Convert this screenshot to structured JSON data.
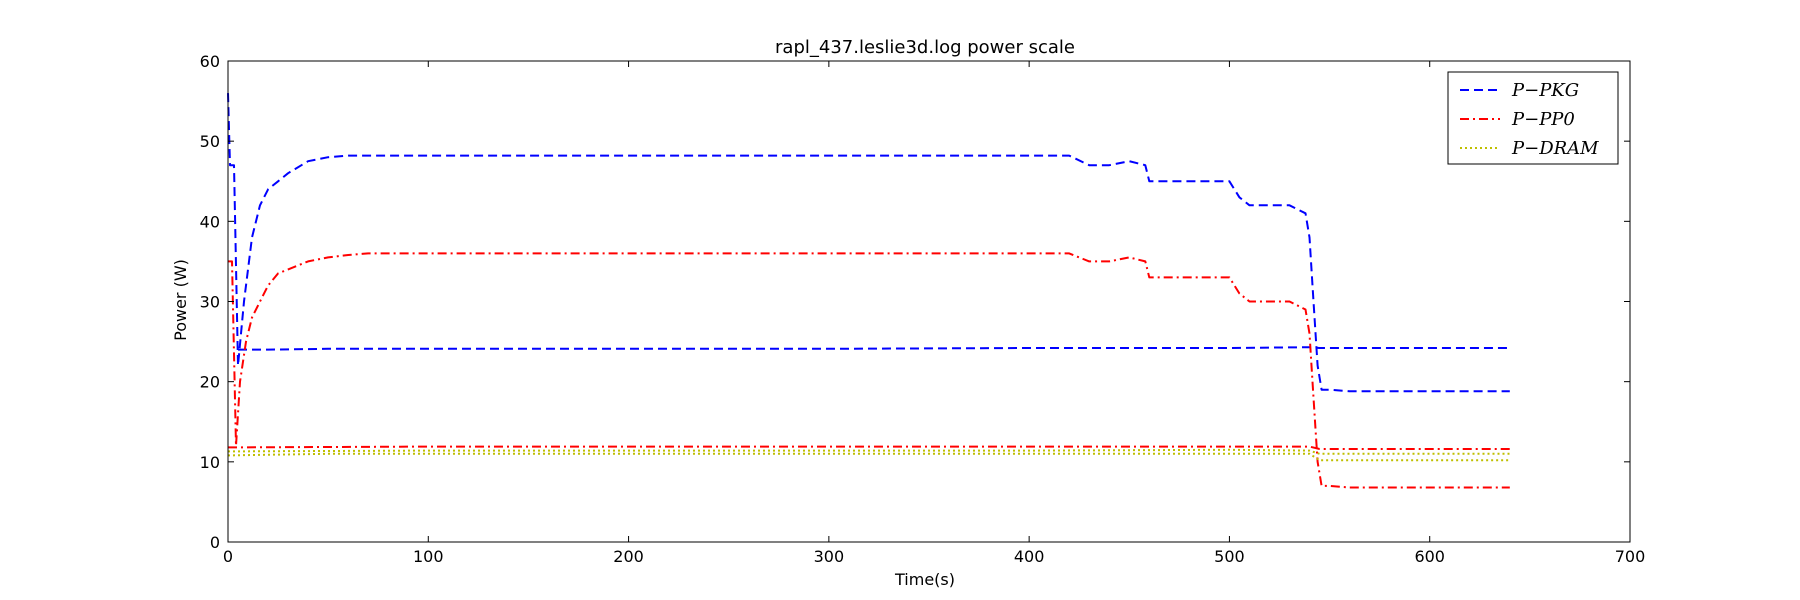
{
  "chart_data": {
    "type": "line",
    "title": "rapl_437.leslie3d.log power scale",
    "xlabel": "Time(s)",
    "ylabel": "Power (W)",
    "xlim": [
      0,
      700
    ],
    "ylim": [
      0,
      60
    ],
    "xticks": [
      0,
      100,
      200,
      300,
      400,
      500,
      600,
      700
    ],
    "yticks": [
      0,
      10,
      20,
      30,
      40,
      50,
      60
    ],
    "grid": false,
    "legend_position": "top-right",
    "series": [
      {
        "name": "P−PKG",
        "color": "#0000ff",
        "style": "dashed",
        "segments": [
          {
            "x": [
              0,
              1,
              3,
              5,
              8,
              12,
              16,
              20,
              25,
              30,
              40,
              50,
              60,
              70,
              100,
              200,
              300,
              400,
              420,
              430,
              440,
              450,
              458,
              460,
              480,
              500,
              505,
              510,
              520,
              530,
              538,
              540,
              542,
              544,
              546,
              550,
              560,
              600,
              640
            ],
            "y": [
              56,
              47,
              47,
              22,
              30,
              38,
              42,
              44,
              45,
              46,
              47.5,
              48,
              48.2,
              48.2,
              48.2,
              48.2,
              48.2,
              48.2,
              48.2,
              47,
              47,
              47.5,
              47,
              45,
              45,
              45,
              43,
              42,
              42,
              42,
              41,
              38,
              30,
              22,
              19,
              19,
              18.8,
              18.8,
              18.8
            ]
          },
          {
            "x": [
              5,
              10,
              20,
              50,
              100,
              200,
              300,
              400,
              500,
              540,
              545,
              600,
              640
            ],
            "y": [
              24,
              24,
              24,
              24.1,
              24.1,
              24.1,
              24.1,
              24.2,
              24.2,
              24.3,
              24.2,
              24.2,
              24.2
            ]
          }
        ]
      },
      {
        "name": "P−PP0",
        "color": "#ff0000",
        "style": "dashdot",
        "segments": [
          {
            "x": [
              0,
              2,
              4,
              6,
              9,
              12,
              16,
              20,
              25,
              30,
              40,
              50,
              60,
              70,
              100,
              200,
              300,
              400,
              420,
              430,
              440,
              450,
              458,
              460,
              480,
              500,
              505,
              510,
              520,
              530,
              538,
              540,
              542,
              544,
              546,
              550,
              560,
              600,
              640
            ],
            "y": [
              35,
              35,
              12,
              20,
              25,
              28,
              30,
              32,
              33.5,
              34,
              35,
              35.5,
              35.8,
              36,
              36,
              36,
              36,
              36,
              36,
              35,
              35,
              35.5,
              35,
              33,
              33,
              33,
              31,
              30,
              30,
              30,
              29,
              26,
              18,
              10,
              7,
              7,
              6.8,
              6.8,
              6.8
            ]
          },
          {
            "x": [
              0,
              100,
              200,
              300,
              400,
              500,
              540,
              545,
              600,
              640
            ],
            "y": [
              11.8,
              11.9,
              11.9,
              11.9,
              11.9,
              11.9,
              11.9,
              11.6,
              11.6,
              11.6
            ]
          }
        ]
      },
      {
        "name": "P−DRAM",
        "color": "#bfbf00",
        "style": "dotted",
        "segments": [
          {
            "x": [
              0,
              50,
              100,
              200,
              300,
              400,
              500,
              540,
              545,
              600,
              640
            ],
            "y": [
              10.8,
              11,
              11,
              11,
              11,
              11,
              11,
              11,
              10.2,
              10.2,
              10.2
            ]
          },
          {
            "x": [
              0,
              100,
              200,
              300,
              400,
              500,
              540,
              545,
              600,
              640
            ],
            "y": [
              11.3,
              11.4,
              11.4,
              11.4,
              11.4,
              11.5,
              11.4,
              11,
              11,
              11
            ]
          }
        ]
      }
    ]
  }
}
